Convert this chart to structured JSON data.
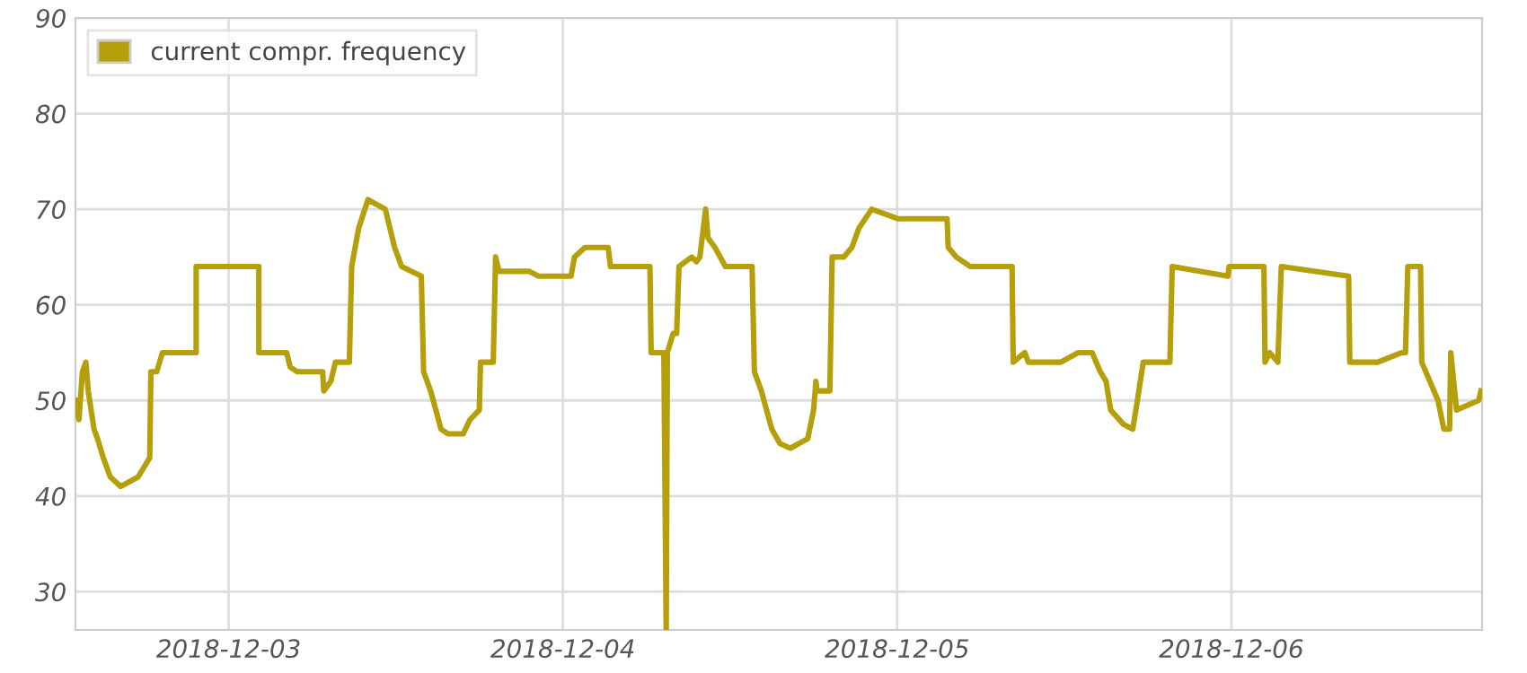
{
  "chart_data": {
    "type": "line",
    "x": [
      "2018-12-02T13:00",
      "2018-12-02T13:15",
      "2018-12-02T13:30",
      "2018-12-02T13:45",
      "2018-12-02T13:55",
      "2018-12-02T14:20",
      "2018-12-02T14:35",
      "2018-12-02T15:00",
      "2018-12-02T15:30",
      "2018-12-02T16:15",
      "2018-12-02T17:30",
      "2018-12-02T18:20",
      "2018-12-02T18:25",
      "2018-12-02T18:50",
      "2018-12-02T19:15",
      "2018-12-02T21:40",
      "2018-12-02T21:40",
      "2018-12-03T02:10",
      "2018-12-03T02:10",
      "2018-12-03T04:10",
      "2018-12-03T04:25",
      "2018-12-03T04:55",
      "2018-12-03T06:45",
      "2018-12-03T06:50",
      "2018-12-03T07:20",
      "2018-12-03T07:40",
      "2018-12-03T08:40",
      "2018-12-03T08:50",
      "2018-12-03T09:20",
      "2018-12-03T10:00",
      "2018-12-03T11:15",
      "2018-12-03T11:55",
      "2018-12-03T12:25",
      "2018-12-03T13:50",
      "2018-12-03T14:00",
      "2018-12-03T14:30",
      "2018-12-03T15:15",
      "2018-12-03T15:45",
      "2018-12-03T16:50",
      "2018-12-03T17:20",
      "2018-12-03T18:00",
      "2018-12-03T18:05",
      "2018-12-03T19:00",
      "2018-12-03T19:10",
      "2018-12-03T19:25",
      "2018-12-03T21:35",
      "2018-12-03T22:15",
      "2018-12-04T00:35",
      "2018-12-04T00:50",
      "2018-12-04T01:35",
      "2018-12-04T03:15",
      "2018-12-04T03:25",
      "2018-12-04T06:15",
      "2018-12-04T06:20",
      "2018-12-04T07:15",
      "2018-12-04T07:25",
      "2018-12-04T07:30",
      "2018-12-04T07:55",
      "2018-12-04T08:10",
      "2018-12-04T08:20",
      "2018-12-04T09:15",
      "2018-12-04T09:35",
      "2018-12-04T09:50",
      "2018-12-04T10:15",
      "2018-12-04T10:25",
      "2018-12-04T10:55",
      "2018-12-04T11:40",
      "2018-12-04T13:35",
      "2018-12-04T13:45",
      "2018-12-04T14:15",
      "2018-12-04T15:00",
      "2018-12-04T15:35",
      "2018-12-04T16:20",
      "2018-12-04T17:35",
      "2018-12-04T18:00",
      "2018-12-04T18:10",
      "2018-12-04T18:15",
      "2018-12-04T19:10",
      "2018-12-04T19:20",
      "2018-12-04T20:10",
      "2018-12-04T20:45",
      "2018-12-04T21:15",
      "2018-12-04T22:10",
      "2018-12-05T00:05",
      "2018-12-05T03:35",
      "2018-12-05T03:40",
      "2018-12-05T04:15",
      "2018-12-05T05:15",
      "2018-12-05T08:15",
      "2018-12-05T08:20",
      "2018-12-05T09:10",
      "2018-12-05T09:25",
      "2018-12-05T11:45",
      "2018-12-05T13:00",
      "2018-12-05T14:00",
      "2018-12-05T14:35",
      "2018-12-05T15:00",
      "2018-12-05T15:20",
      "2018-12-05T16:15",
      "2018-12-05T16:55",
      "2018-12-05T17:15",
      "2018-12-05T17:40",
      "2018-12-05T18:25",
      "2018-12-05T19:35",
      "2018-12-05T19:45",
      "2018-12-05T23:45",
      "2018-12-05T23:50",
      "2018-12-06T02:20",
      "2018-12-06T02:25",
      "2018-12-06T02:45",
      "2018-12-06T03:20",
      "2018-12-06T03:35",
      "2018-12-06T08:25",
      "2018-12-06T08:30",
      "2018-12-06T10:30",
      "2018-12-06T12:15",
      "2018-12-06T12:30",
      "2018-12-06T12:40",
      "2018-12-06T13:35",
      "2018-12-06T13:40",
      "2018-12-06T14:50",
      "2018-12-06T15:15",
      "2018-12-06T15:40",
      "2018-12-06T15:45",
      "2018-12-06T16:10",
      "2018-12-06T17:45",
      "2018-12-06T17:55"
    ],
    "series": [
      {
        "name": "current compr. frequency",
        "color": "#b59f0b",
        "values": [
          50,
          48,
          53,
          54,
          51,
          47,
          46,
          44,
          42,
          41,
          42,
          44,
          53,
          53,
          55,
          55,
          64,
          64,
          55,
          55,
          53.5,
          53,
          53,
          51,
          52,
          54,
          54,
          64,
          68,
          71,
          70,
          66,
          64,
          63,
          53,
          51,
          47,
          46.5,
          46.5,
          48,
          49,
          54,
          54,
          65,
          63.5,
          63.5,
          63,
          63,
          65,
          66,
          66,
          64,
          64,
          55,
          55,
          26,
          55,
          57,
          57,
          64,
          65,
          64.5,
          65,
          70,
          67,
          66,
          64,
          64,
          53,
          51,
          47,
          45.5,
          45,
          46,
          49,
          52,
          51,
          51,
          65,
          65,
          66,
          68,
          70,
          69,
          69,
          66,
          65,
          64,
          64,
          54,
          55,
          54,
          54,
          55,
          55,
          53,
          52,
          49,
          47.5,
          47,
          50,
          54,
          54,
          54,
          64,
          63,
          64,
          64,
          54,
          55,
          54,
          64,
          63,
          54,
          54,
          55,
          55,
          64,
          64,
          54,
          50,
          47,
          47,
          55,
          49,
          50,
          51
        ]
      }
    ],
    "xlim": [
      "2018-12-02T13:00",
      "2018-12-06T18:00"
    ],
    "xticks": [
      {
        "value": "2018-12-03",
        "label": "2018-12-03"
      },
      {
        "value": "2018-12-04",
        "label": "2018-12-04"
      },
      {
        "value": "2018-12-05",
        "label": "2018-12-05"
      },
      {
        "value": "2018-12-06",
        "label": "2018-12-06"
      }
    ],
    "ylim": [
      26,
      90
    ],
    "yticks": [
      30,
      40,
      50,
      60,
      70,
      80,
      90
    ],
    "grid": true,
    "legend": "top left",
    "marker": "none",
    "line_style": "solid"
  }
}
